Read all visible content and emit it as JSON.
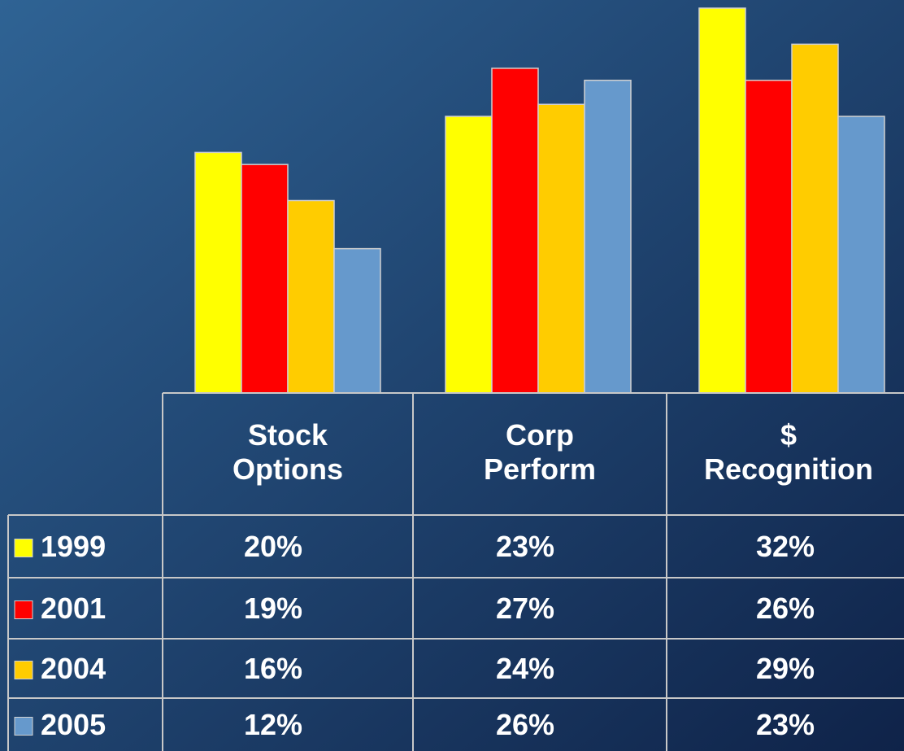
{
  "chart_data": {
    "type": "bar",
    "categories": [
      "Stock\nOptions",
      "Corp\nPerform",
      "$\nRecognition"
    ],
    "series": [
      {
        "name": "1999",
        "color": "#ffff00",
        "values": [
          20,
          23,
          32
        ],
        "value_labels": [
          "20%",
          "23%",
          "32%"
        ]
      },
      {
        "name": "2001",
        "color": "#ff0000",
        "values": [
          19,
          27,
          26
        ],
        "value_labels": [
          "19%",
          "27%",
          "26%"
        ]
      },
      {
        "name": "2004",
        "color": "#ffcc00",
        "values": [
          16,
          24,
          29
        ],
        "value_labels": [
          "16%",
          "24%",
          "29%"
        ]
      },
      {
        "name": "2005",
        "color": "#6699cc",
        "values": [
          12,
          26,
          23
        ],
        "value_labels": [
          "12%",
          "26%",
          "23%"
        ]
      }
    ]
  }
}
